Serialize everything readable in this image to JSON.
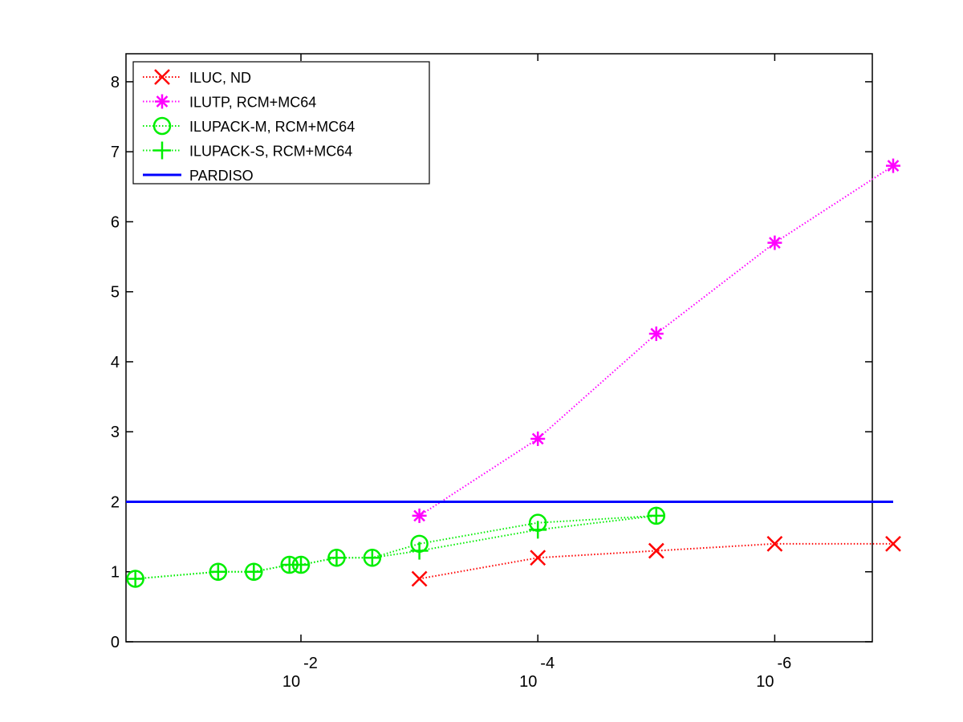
{
  "chart_data": {
    "type": "line",
    "title": "",
    "xlabel": "",
    "ylabel": "",
    "x_scale": "log",
    "x_direction": "decreasing",
    "xlim": [
      0.3,
      1.5e-07
    ],
    "ylim": [
      0,
      8.4
    ],
    "yticks": [
      0,
      1,
      2,
      3,
      4,
      5,
      6,
      7,
      8
    ],
    "xticks": [
      {
        "value": 0.01,
        "base": "10",
        "exponent": "-2"
      },
      {
        "value": 0.0001,
        "base": "10",
        "exponent": "-4"
      },
      {
        "value": 1e-06,
        "base": "10",
        "exponent": "-6"
      }
    ],
    "grid": false,
    "legend_position": "top-left",
    "series": [
      {
        "name": "ILUC,  ND",
        "color": "#ff0000",
        "marker": "x",
        "line_style": "dotted",
        "x": [
          0.001,
          0.0001,
          1e-05,
          1e-06,
          1e-07
        ],
        "y": [
          0.9,
          1.2,
          1.3,
          1.4,
          1.4
        ]
      },
      {
        "name": "ILUTP, RCM+MC64",
        "color": "#ff00ff",
        "marker": "asterisk",
        "line_style": "dotted",
        "x": [
          0.001,
          0.0001,
          1e-05,
          1e-06,
          1e-07
        ],
        "y": [
          1.8,
          2.9,
          4.4,
          5.7,
          6.8
        ]
      },
      {
        "name": "ILUPACK-M, RCM+MC64",
        "color": "#00ee00",
        "marker": "circle",
        "line_style": "dotted",
        "x": [
          0.25,
          0.05,
          0.025,
          0.0125,
          0.01,
          0.005,
          0.0025,
          0.001,
          0.0001,
          1e-05
        ],
        "y": [
          0.9,
          1.0,
          1.0,
          1.1,
          1.1,
          1.2,
          1.2,
          1.4,
          1.7,
          1.8
        ]
      },
      {
        "name": "ILUPACK-S, RCM+MC64",
        "color": "#00ee00",
        "marker": "plus",
        "line_style": "dotted",
        "x": [
          0.25,
          0.05,
          0.025,
          0.0125,
          0.01,
          0.005,
          0.0025,
          0.001,
          0.0001,
          1e-05
        ],
        "y": [
          0.9,
          1.0,
          1.0,
          1.1,
          1.1,
          1.2,
          1.2,
          1.3,
          1.6,
          1.8
        ]
      },
      {
        "name": "PARDISO",
        "color": "#0000ff",
        "marker": "none",
        "line_style": "solid",
        "x": [
          0.3,
          1e-07
        ],
        "y": [
          2.0,
          2.0
        ]
      }
    ]
  }
}
